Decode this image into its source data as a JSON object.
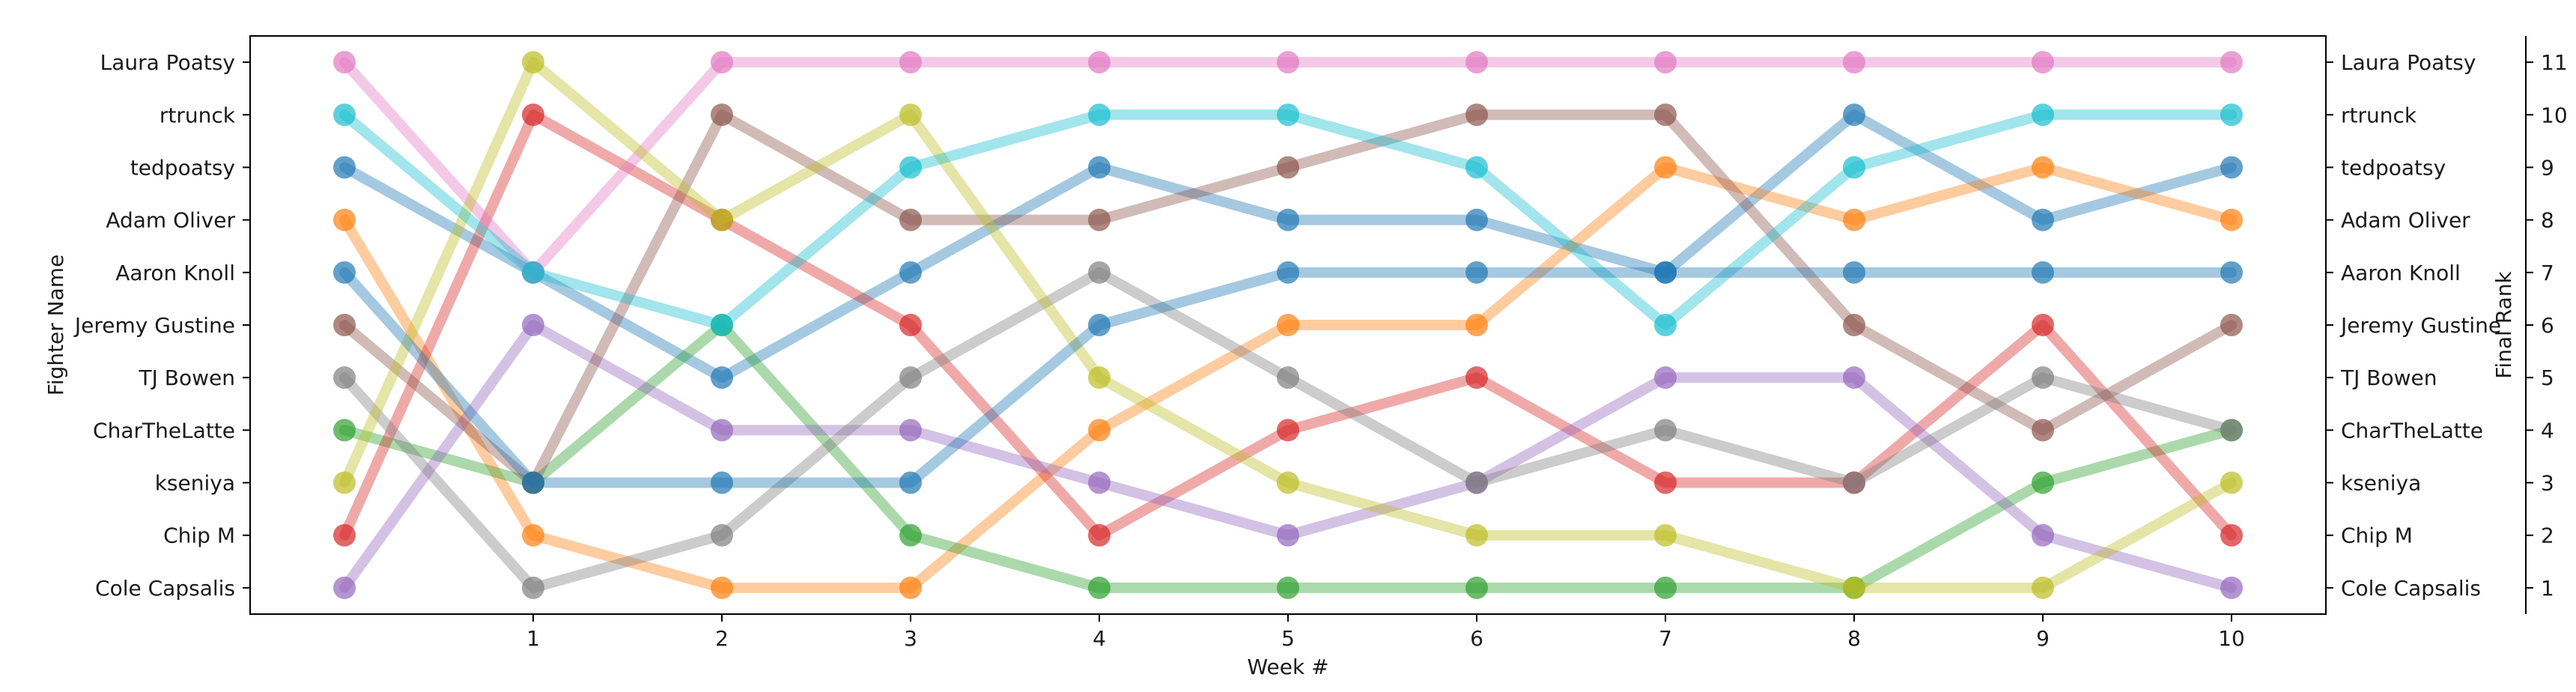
{
  "chart_data": {
    "type": "line",
    "xlabel": "Week #",
    "ylabel": "Fighter Name",
    "ylabel_right": "Final Rank",
    "x": [
      0,
      1,
      2,
      3,
      4,
      5,
      6,
      7,
      8,
      9,
      10
    ],
    "x_tick_labels": [
      "1",
      "2",
      "3",
      "4",
      "5",
      "6",
      "7",
      "8",
      "9",
      "10"
    ],
    "xlim": [
      -0.5,
      10.5
    ],
    "ylim": [
      11.5,
      0.5
    ],
    "left_tick_labels": [
      "Cole Capsalis",
      "Chip M",
      "kseniya",
      "CharTheLatte",
      "TJ Bowen",
      "Jeremy Gustine",
      "Aaron Knoll",
      "Adam Oliver",
      "tedpoatsy",
      "rtrunck",
      "Laura Poatsy"
    ],
    "right_tick_labels": [
      "Cole Capsalis",
      "Chip M",
      "kseniya",
      "CharTheLatte",
      "TJ Bowen",
      "Jeremy Gustine",
      "Aaron Knoll",
      "Adam Oliver",
      "tedpoatsy",
      "rtrunck",
      "Laura Poatsy"
    ],
    "rank_tick_labels": [
      "1",
      "2",
      "3",
      "4",
      "5",
      "6",
      "7",
      "8",
      "9",
      "10",
      "11"
    ],
    "grid": false,
    "series": [
      {
        "color": "#1f77b4",
        "values": [
          9,
          7,
          5,
          7,
          9,
          8,
          8,
          7,
          10,
          8,
          9
        ]
      },
      {
        "color": "#ff7f0e",
        "values": [
          8,
          2,
          1,
          1,
          4,
          6,
          6,
          9,
          8,
          9,
          8
        ]
      },
      {
        "color": "#2ca02c",
        "values": [
          4,
          3,
          6,
          2,
          1,
          1,
          1,
          1,
          1,
          3,
          4
        ]
      },
      {
        "color": "#d62728",
        "values": [
          2,
          10,
          8,
          6,
          2,
          4,
          5,
          3,
          3,
          6,
          2
        ]
      },
      {
        "color": "#9467bd",
        "values": [
          1,
          6,
          4,
          4,
          3,
          2,
          3,
          5,
          5,
          2,
          1
        ]
      },
      {
        "color": "#8c564b",
        "values": [
          6,
          3,
          10,
          8,
          8,
          9,
          10,
          10,
          6,
          4,
          6
        ]
      },
      {
        "color": "#e377c2",
        "values": [
          11,
          7,
          11,
          11,
          11,
          11,
          11,
          11,
          11,
          11,
          11
        ]
      },
      {
        "color": "#7f7f7f",
        "values": [
          5,
          1,
          2,
          5,
          7,
          5,
          3,
          4,
          3,
          5,
          4
        ]
      },
      {
        "color": "#bcbd22",
        "values": [
          3,
          11,
          8,
          10,
          5,
          3,
          2,
          2,
          1,
          1,
          3
        ]
      },
      {
        "color": "#17becf",
        "values": [
          10,
          7,
          6,
          9,
          10,
          10,
          9,
          6,
          9,
          10,
          10
        ]
      },
      {
        "color": "#1f77b4",
        "values": [
          7,
          3,
          3,
          3,
          6,
          7,
          7,
          7,
          7,
          7,
          7
        ]
      }
    ]
  }
}
